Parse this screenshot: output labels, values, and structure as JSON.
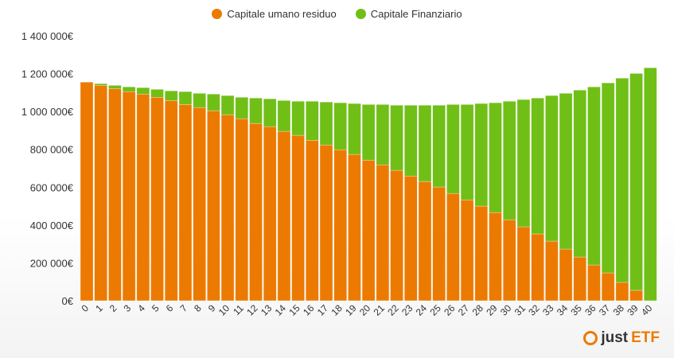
{
  "chart_data": {
    "type": "bar",
    "stacked": true,
    "title": "",
    "xlabel": "",
    "ylabel": "",
    "ylim": [
      0,
      1400000
    ],
    "yticks": [
      0,
      200000,
      400000,
      600000,
      800000,
      1000000,
      1200000,
      1400000
    ],
    "ytick_labels": [
      "0€",
      "200 000€",
      "400 000€",
      "600 000€",
      "800 000€",
      "1 000 000€",
      "1 200 000€",
      "1 400 000€"
    ],
    "categories": [
      "0",
      "1",
      "2",
      "3",
      "4",
      "5",
      "6",
      "7",
      "8",
      "9",
      "10",
      "11",
      "12",
      "13",
      "14",
      "15",
      "16",
      "17",
      "18",
      "19",
      "20",
      "21",
      "22",
      "23",
      "24",
      "25",
      "26",
      "27",
      "28",
      "29",
      "30",
      "31",
      "32",
      "33",
      "34",
      "35",
      "36",
      "37",
      "38",
      "39",
      "40"
    ],
    "legend_position": "top",
    "grid": false,
    "series": [
      {
        "name": "Capitale umano residuo",
        "color": "#ec7a00",
        "values": [
          1155000,
          1138000,
          1121000,
          1105000,
          1092000,
          1075000,
          1058000,
          1037000,
          1021000,
          1004000,
          983000,
          962000,
          937000,
          920000,
          895000,
          874000,
          848000,
          823000,
          798000,
          773000,
          743000,
          718000,
          689000,
          659000,
          630000,
          601000,
          567000,
          533000,
          500000,
          466000,
          428000,
          391000,
          353000,
          315000,
          273000,
          231000,
          189000,
          147000,
          97000,
          55000,
          0
        ]
      },
      {
        "name": "Capitale Finanziario",
        "color": "#70bf17",
        "values": [
          0,
          9000,
          17000,
          25000,
          34000,
          42000,
          51000,
          68000,
          75000,
          88000,
          101000,
          113000,
          134000,
          147000,
          163000,
          180000,
          206000,
          227000,
          248000,
          269000,
          294000,
          319000,
          344000,
          374000,
          403000,
          432000,
          470000,
          504000,
          542000,
          580000,
          626000,
          672000,
          718000,
          769000,
          823000,
          882000,
          941000,
          1004000,
          1079000,
          1146000,
          1231000
        ]
      }
    ]
  },
  "logo": {
    "text_a": "just",
    "text_b": "ETF"
  }
}
